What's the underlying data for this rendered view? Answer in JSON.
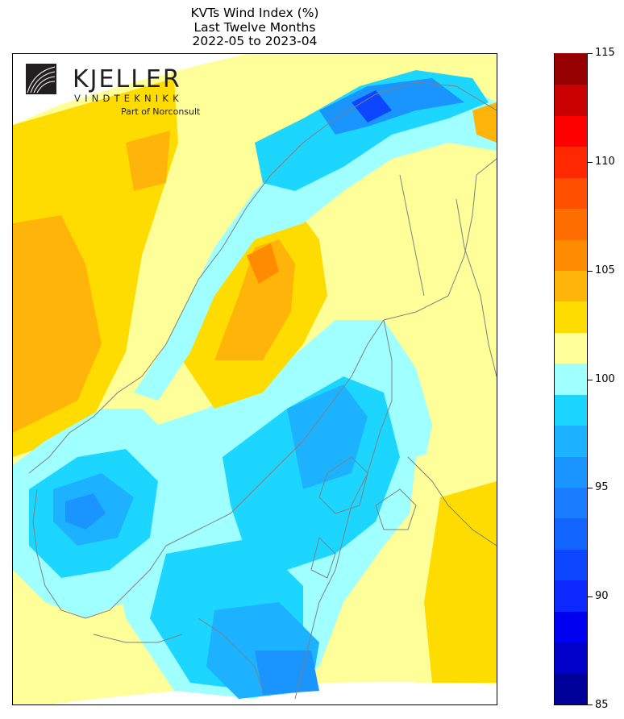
{
  "title": {
    "line1": "KVTs Wind Index (%)",
    "line2": "Last Twelve Months",
    "line3": "2022-05 to 2023-04"
  },
  "logo": {
    "wordmark": "KJELLER",
    "subtitle": "VINDTEKNIKK",
    "tagline": "Part of Norconsult"
  },
  "colorbar": {
    "min": 85,
    "max": 115,
    "ticks": [
      "85",
      "90",
      "95",
      "100",
      "105",
      "110",
      "115"
    ],
    "tick_values": [
      85,
      90,
      95,
      100,
      105,
      110,
      115
    ],
    "colors": [
      "#00009a",
      "#0000c8",
      "#0000f0",
      "#0a28ff",
      "#0d46ff",
      "#1264ff",
      "#1a7cff",
      "#1a94ff",
      "#1cb2ff",
      "#1cd6ff",
      "#a0ffff",
      "#ffff9a",
      "#ffdc00",
      "#ffb40a",
      "#ff8c00",
      "#ff6e00",
      "#ff5000",
      "#ff2800",
      "#ff0000",
      "#c80000",
      "#960000"
    ]
  },
  "map_colors": {
    "coast": "#808080",
    "cyan_light": "#a0ffff",
    "cyan": "#1cd6ff",
    "blue_mid": "#1cb2ff",
    "blue": "#1a94ff",
    "blue_dark": "#0d46ff",
    "yellow_light": "#ffff9a",
    "yellow": "#ffdc00",
    "orange_light": "#ffb40a",
    "orange": "#ff8c00"
  }
}
